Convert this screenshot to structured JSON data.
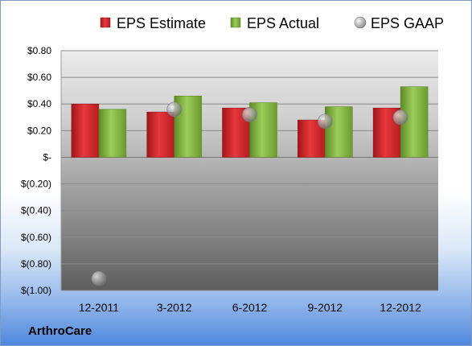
{
  "company": "ArthroCare",
  "chart_data": {
    "type": "bar",
    "categories": [
      "12-2011",
      "3-2012",
      "6-2012",
      "9-2012",
      "12-2012"
    ],
    "series": [
      {
        "name": "EPS Estimate",
        "kind": "bar",
        "color": "#d4262a",
        "values": [
          0.4,
          0.34,
          0.37,
          0.28,
          0.37
        ]
      },
      {
        "name": "EPS Actual",
        "kind": "bar",
        "color": "#82b540",
        "values": [
          0.36,
          0.46,
          0.41,
          0.38,
          0.53
        ]
      },
      {
        "name": "EPS GAAP",
        "kind": "marker",
        "color": "#a6a6a6",
        "values": [
          -0.91,
          0.36,
          0.32,
          0.27,
          0.3
        ]
      }
    ],
    "yticks": [
      0.8,
      0.6,
      0.4,
      0.2,
      0,
      -0.2,
      -0.4,
      -0.6,
      -0.8,
      -1.0
    ],
    "ytick_labels": [
      "$0.80",
      "$0.60",
      "$0.40",
      "$0.20",
      "$-",
      "$(0.20)",
      "$(0.40)",
      "$(0.60)",
      "$(0.80)",
      "$(1.00)"
    ],
    "ylim": [
      -1.0,
      0.8
    ],
    "grid": true,
    "legend_position": "top"
  }
}
